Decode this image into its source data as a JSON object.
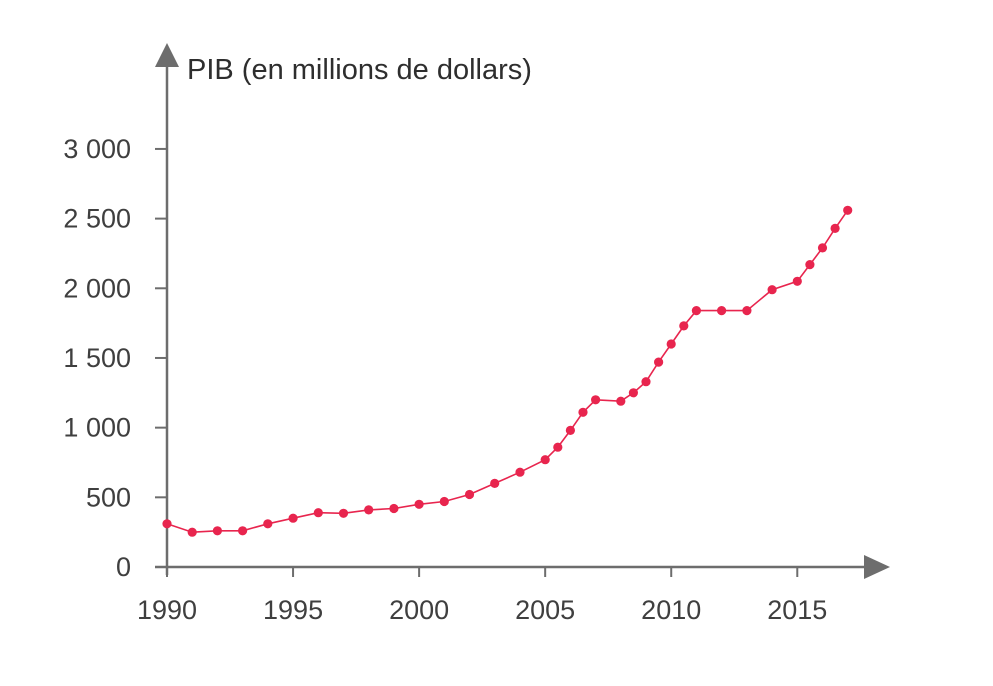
{
  "chart_data": {
    "type": "line",
    "title": "",
    "ylabel": "PIB (en millions de dollars)",
    "xlabel": "",
    "xlim": [
      1990,
      2018.4
    ],
    "ylim": [
      0,
      3100
    ],
    "x_ticks": [
      {
        "value": 1990,
        "label": "1990"
      },
      {
        "value": 1995,
        "label": "1995"
      },
      {
        "value": 2000,
        "label": "2000"
      },
      {
        "value": 2005,
        "label": "2005"
      },
      {
        "value": 2010,
        "label": "2010"
      },
      {
        "value": 2015,
        "label": "2015"
      }
    ],
    "y_ticks": [
      {
        "value": 0,
        "label": "0"
      },
      {
        "value": 500,
        "label": "500"
      },
      {
        "value": 1000,
        "label": "1 000"
      },
      {
        "value": 1500,
        "label": "1 500"
      },
      {
        "value": 2000,
        "label": "2 000"
      },
      {
        "value": 2500,
        "label": "2 500"
      },
      {
        "value": 3000,
        "label": "3 000"
      }
    ],
    "grid": false,
    "color": "#e8254e",
    "axis_color": "#6d6d6d",
    "series": [
      {
        "x": [
          1990,
          1991,
          1992,
          1993,
          1994,
          1995,
          1996,
          1997,
          1998,
          1999,
          2000,
          2001,
          2002,
          2003,
          2004,
          2005,
          2005.5,
          2006,
          2006.5,
          2007,
          2008,
          2008.5,
          2009,
          2009.5,
          2010,
          2010.5,
          2011,
          2012,
          2013,
          2014,
          2015,
          2015.5,
          2016,
          2016.5,
          2017
        ],
        "y": [
          310,
          250,
          260,
          260,
          310,
          350,
          390,
          385,
          410,
          420,
          450,
          470,
          520,
          600,
          680,
          770,
          860,
          980,
          1110,
          1200,
          1190,
          1250,
          1330,
          1470,
          1600,
          1730,
          1840,
          1840,
          1840,
          1990,
          2050,
          2170,
          2290,
          2430,
          2560
        ]
      }
    ]
  }
}
